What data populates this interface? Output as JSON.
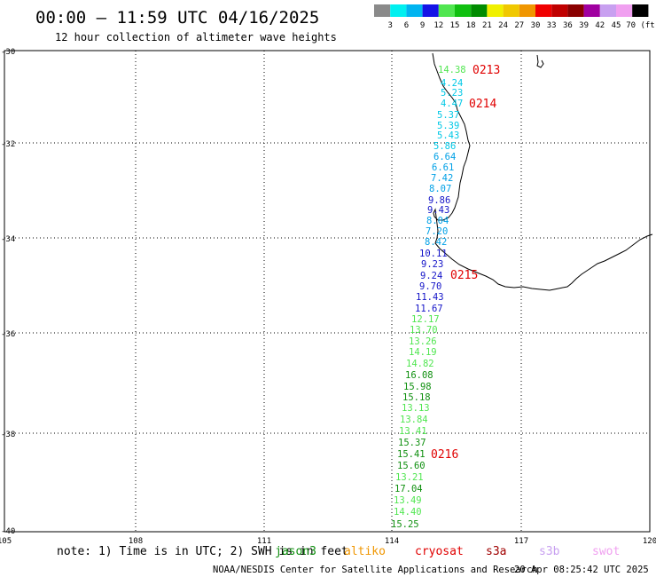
{
  "header": {
    "title": "00:00 – 11:59 UTC 04/16/2025",
    "subtitle": "12 hour collection of altimeter wave heights"
  },
  "colorbar": {
    "colors": [
      "#8a8a8a",
      "#00f0f0",
      "#00b4f0",
      "#1414e6",
      "#50e650",
      "#10c010",
      "#008c00",
      "#f0f000",
      "#f0c800",
      "#f09600",
      "#f00000",
      "#c00000",
      "#8a0000",
      "#a000a0",
      "#c8a0f0",
      "#f0a0f0",
      "#000000"
    ],
    "labels": [
      "3",
      "6",
      "9",
      "12",
      "15",
      "18",
      "21",
      "24",
      "27",
      "30",
      "33",
      "36",
      "39",
      "42",
      "45",
      "70 (ft)"
    ]
  },
  "axes": {
    "lat_labels": [
      "-30",
      "-32",
      "-34",
      "-36",
      "-38",
      "-40"
    ],
    "lon_labels": [
      "105",
      "108",
      "111",
      "114",
      "117",
      "120"
    ]
  },
  "passes": [
    {
      "label": "0213",
      "color": "#e00000"
    },
    {
      "label": "0214",
      "color": "#e00000"
    },
    {
      "label": "0215",
      "color": "#e00000"
    },
    {
      "label": "0216",
      "color": "#e00000"
    }
  ],
  "swh_readings": [
    {
      "value": "14.38",
      "color": "#50e650"
    },
    {
      "value": "4.24",
      "color": "#00c8e6"
    },
    {
      "value": "5.23",
      "color": "#00c8e6"
    },
    {
      "value": "4.47",
      "color": "#00c8e6"
    },
    {
      "value": "5.37",
      "color": "#00c8e6"
    },
    {
      "value": "5.39",
      "color": "#00c8e6"
    },
    {
      "value": "5.43",
      "color": "#00c8e6"
    },
    {
      "value": "5.86",
      "color": "#00c8e6"
    },
    {
      "value": "6.64",
      "color": "#00a0e6"
    },
    {
      "value": "6.61",
      "color": "#00a0e6"
    },
    {
      "value": "7.42",
      "color": "#00a0e6"
    },
    {
      "value": "8.07",
      "color": "#00a0e6"
    },
    {
      "value": "9.86",
      "color": "#1414c8"
    },
    {
      "value": "9.43",
      "color": "#1414c8"
    },
    {
      "value": "8.04",
      "color": "#00a0e6"
    },
    {
      "value": "7.20",
      "color": "#00a0e6"
    },
    {
      "value": "8.42",
      "color": "#00a0e6"
    },
    {
      "value": "10.11",
      "color": "#1414c8"
    },
    {
      "value": "9.23",
      "color": "#1414c8"
    },
    {
      "value": "9.24",
      "color": "#1414c8"
    },
    {
      "value": "9.70",
      "color": "#1414c8"
    },
    {
      "value": "11.43",
      "color": "#1414c8"
    },
    {
      "value": "11.67",
      "color": "#1414c8"
    },
    {
      "value": "12.17",
      "color": "#50e650"
    },
    {
      "value": "13.70",
      "color": "#50e650"
    },
    {
      "value": "13.26",
      "color": "#50e650"
    },
    {
      "value": "14.19",
      "color": "#50e650"
    },
    {
      "value": "14.82",
      "color": "#50e650"
    },
    {
      "value": "16.08",
      "color": "#109010"
    },
    {
      "value": "15.98",
      "color": "#109010"
    },
    {
      "value": "15.18",
      "color": "#109010"
    },
    {
      "value": "13.13",
      "color": "#50e650"
    },
    {
      "value": "13.84",
      "color": "#50e650"
    },
    {
      "value": "13.41",
      "color": "#50e650"
    },
    {
      "value": "15.37",
      "color": "#109010"
    },
    {
      "value": "15.41",
      "color": "#109010"
    },
    {
      "value": "15.60",
      "color": "#109010"
    },
    {
      "value": "13.21",
      "color": "#50e650"
    },
    {
      "value": "17.04",
      "color": "#109010"
    },
    {
      "value": "13.49",
      "color": "#50e650"
    },
    {
      "value": "14.40",
      "color": "#50e650"
    },
    {
      "value": "15.25",
      "color": "#109010"
    }
  ],
  "footer": {
    "note": "note: 1) Time is in UTC; 2) SWH is in feet",
    "satellites": [
      {
        "name": "jason3",
        "color": "#109010"
      },
      {
        "name": "altiko",
        "color": "#f09600"
      },
      {
        "name": "cryosat",
        "color": "#e00000"
      },
      {
        "name": "s3a",
        "color": "#a00000"
      },
      {
        "name": "s3b",
        "color": "#c8a0f0"
      },
      {
        "name": "swot",
        "color": "#f0a0f0"
      }
    ],
    "credit": "NOAA/NESDIS Center for Satellite Applications and Research",
    "timestamp": "20 Apr 08:25:42 UTC 2025"
  }
}
